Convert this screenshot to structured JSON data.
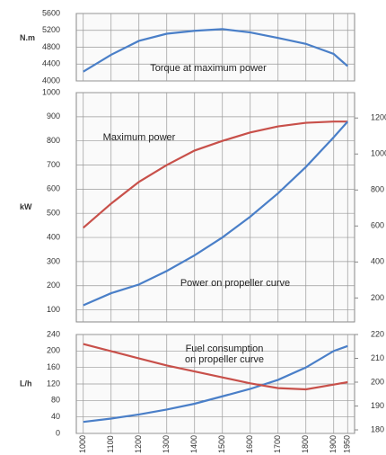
{
  "chart_data": [
    {
      "type": "line",
      "ylabel": "N.m",
      "annotation": [
        "Torque at maximum power"
      ],
      "x": [
        1000,
        1100,
        1200,
        1300,
        1400,
        1500,
        1600,
        1700,
        1800,
        1900,
        1950
      ],
      "xlim": [
        975,
        1975
      ],
      "ylim": [
        4000,
        5600
      ],
      "yticks": [
        4000,
        4400,
        4800,
        5200,
        5600
      ],
      "grid": true,
      "series": [
        {
          "color": "#4a7fc8",
          "values": [
            4220,
            4620,
            4950,
            5120,
            5190,
            5230,
            5150,
            5020,
            4880,
            4640,
            4350
          ]
        }
      ]
    },
    {
      "type": "line",
      "ylabel": "kW",
      "annotation": [
        "Maximum power",
        "Power on propeller curve"
      ],
      "x": [
        1000,
        1100,
        1200,
        1300,
        1400,
        1500,
        1600,
        1700,
        1800,
        1900,
        1950
      ],
      "xlim": [
        975,
        1975
      ],
      "ylim": [
        50,
        1000
      ],
      "yticks": [
        100,
        200,
        300,
        400,
        500,
        600,
        700,
        800,
        900,
        1000
      ],
      "y2lim": [
        67,
        1341
      ],
      "y2ticks": [
        200,
        400,
        600,
        800,
        1000,
        1200
      ],
      "grid": true,
      "series": [
        {
          "color": "#c8504a",
          "values": [
            440,
            540,
            630,
            700,
            760,
            800,
            835,
            860,
            875,
            880,
            880
          ]
        },
        {
          "color": "#4a7fc8",
          "values": [
            119,
            169,
            205,
            261,
            326,
            400,
            486,
            583,
            692,
            815,
            880
          ]
        }
      ]
    },
    {
      "type": "line",
      "ylabel": "L/h",
      "annotation": [
        "Fuel consumption",
        "on propeller curve"
      ],
      "x": [
        1000,
        1100,
        1200,
        1300,
        1400,
        1500,
        1600,
        1700,
        1800,
        1900,
        1950
      ],
      "xlim": [
        975,
        1975
      ],
      "ylim": [
        0,
        240
      ],
      "yticks": [
        0,
        40,
        80,
        120,
        160,
        200,
        240
      ],
      "y2lim": [
        178.5,
        220
      ],
      "y2ticks": [
        180,
        190,
        200,
        210,
        220
      ],
      "y2color": "#d04040",
      "grid": true,
      "xticks": [
        1000,
        1100,
        1200,
        1300,
        1400,
        1500,
        1600,
        1700,
        1800,
        1900,
        1950
      ],
      "series": [
        {
          "color": "#4a7fc8",
          "values": [
            28,
            36,
            46,
            58,
            72,
            90,
            108,
            130,
            160,
            200,
            212
          ]
        },
        {
          "color": "#c8504a",
          "axis": "y2",
          "values": [
            216,
            213,
            210,
            207,
            204.5,
            202,
            199.5,
            197.5,
            197,
            199,
            200
          ]
        }
      ]
    }
  ]
}
